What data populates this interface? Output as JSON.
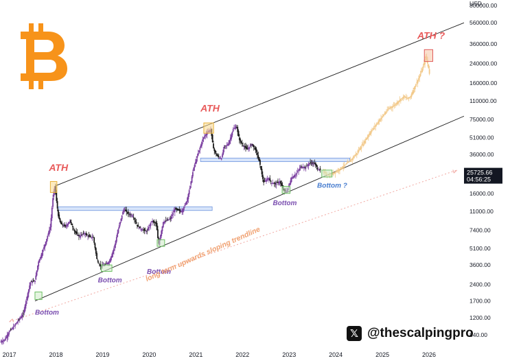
{
  "chart_data": {
    "type": "candlestick",
    "currency_label": "USD",
    "y_scale": "log",
    "ylim": [
      630,
      900000
    ],
    "xlim": [
      2016.8,
      2026.75
    ],
    "y_ticks": [
      800000,
      560000,
      360000,
      240000,
      160000,
      110000,
      75000,
      51000,
      36000,
      25000,
      16000,
      11000,
      7400,
      5100,
      3600,
      2400,
      1700,
      1200,
      840
    ],
    "y_tick_labels": [
      "800000.00",
      "560000.00",
      "360000.00",
      "240000.00",
      "160000.00",
      "110000.00",
      "75000.00",
      "51000.00",
      "36000.00",
      "25000.00",
      "16000.00",
      "11000.00",
      "7400.00",
      "5100.00",
      "3600.00",
      "2400.00",
      "1700.00",
      "1200.00",
      "840.00"
    ],
    "x_ticks": [
      2017,
      2018,
      2019,
      2020,
      2021,
      2022,
      2023,
      2024,
      2025,
      2026
    ],
    "x_tick_labels": [
      "2017",
      "2018",
      "2019",
      "2020",
      "2021",
      "2022",
      "2023",
      "2024",
      "2025",
      "2026"
    ],
    "price_tag": {
      "price": "25725.66",
      "countdown": "04:56:25",
      "value": 25725.66
    },
    "series": [
      {
        "name": "historical",
        "color": "#7b3fa0",
        "points": [
          [
            2016.8,
            720
          ],
          [
            2016.9,
            760
          ],
          [
            2017.0,
            900
          ],
          [
            2017.1,
            1000
          ],
          [
            2017.2,
            1150
          ],
          [
            2017.3,
            1300
          ],
          [
            2017.35,
            1650
          ],
          [
            2017.45,
            2500
          ],
          [
            2017.55,
            2600
          ],
          [
            2017.62,
            3800
          ],
          [
            2017.7,
            4600
          ],
          [
            2017.8,
            6200
          ],
          [
            2017.88,
            8000
          ],
          [
            2017.93,
            14000
          ],
          [
            2017.97,
            19000
          ],
          [
            2018.0,
            15000
          ],
          [
            2018.05,
            10000
          ],
          [
            2018.1,
            8500
          ],
          [
            2018.2,
            8000
          ],
          [
            2018.3,
            9000
          ],
          [
            2018.4,
            7200
          ],
          [
            2018.5,
            6500
          ],
          [
            2018.6,
            7000
          ],
          [
            2018.7,
            6500
          ],
          [
            2018.8,
            6400
          ],
          [
            2018.88,
            4000
          ],
          [
            2018.95,
            3500
          ],
          [
            2019.05,
            3600
          ],
          [
            2019.15,
            3900
          ],
          [
            2019.25,
            5200
          ],
          [
            2019.35,
            8000
          ],
          [
            2019.45,
            11500
          ],
          [
            2019.55,
            10500
          ],
          [
            2019.65,
            10000
          ],
          [
            2019.75,
            8000
          ],
          [
            2019.85,
            7500
          ],
          [
            2019.95,
            7200
          ],
          [
            2020.05,
            9000
          ],
          [
            2020.15,
            8500
          ],
          [
            2020.2,
            5500
          ],
          [
            2020.3,
            8800
          ],
          [
            2020.45,
            9400
          ],
          [
            2020.55,
            11500
          ],
          [
            2020.7,
            11000
          ],
          [
            2020.8,
            13500
          ],
          [
            2020.87,
            18000
          ],
          [
            2020.95,
            27000
          ],
          [
            2021.05,
            37000
          ],
          [
            2021.15,
            50000
          ],
          [
            2021.25,
            58000
          ],
          [
            2021.32,
            60000
          ],
          [
            2021.38,
            40000
          ],
          [
            2021.45,
            35000
          ],
          [
            2021.55,
            33000
          ],
          [
            2021.6,
            42000
          ],
          [
            2021.7,
            45000
          ],
          [
            2021.8,
            61000
          ],
          [
            2021.87,
            65000
          ],
          [
            2021.93,
            49000
          ],
          [
            2022.0,
            44000
          ],
          [
            2022.1,
            40000
          ],
          [
            2022.2,
            45000
          ],
          [
            2022.3,
            38000
          ],
          [
            2022.37,
            30000
          ],
          [
            2022.45,
            20000
          ],
          [
            2022.55,
            22000
          ],
          [
            2022.62,
            20000
          ],
          [
            2022.7,
            19500
          ],
          [
            2022.8,
            20500
          ],
          [
            2022.88,
            17000
          ],
          [
            2022.95,
            16700
          ],
          [
            2023.05,
            22000
          ],
          [
            2023.15,
            24000
          ],
          [
            2023.25,
            28000
          ],
          [
            2023.35,
            27500
          ],
          [
            2023.45,
            30500
          ],
          [
            2023.55,
            29500
          ],
          [
            2023.62,
            26500
          ],
          [
            2023.68,
            25700
          ]
        ]
      },
      {
        "name": "projection",
        "color": "#f2c98a",
        "points": [
          [
            2023.72,
            25000
          ],
          [
            2023.8,
            24000
          ],
          [
            2023.87,
            23000
          ],
          [
            2023.95,
            24500
          ],
          [
            2024.05,
            26000
          ],
          [
            2024.15,
            28000
          ],
          [
            2024.25,
            30000
          ],
          [
            2024.35,
            33000
          ],
          [
            2024.45,
            37000
          ],
          [
            2024.55,
            43000
          ],
          [
            2024.65,
            50000
          ],
          [
            2024.75,
            58000
          ],
          [
            2024.85,
            66000
          ],
          [
            2024.95,
            75000
          ],
          [
            2025.05,
            85000
          ],
          [
            2025.15,
            95000
          ],
          [
            2025.25,
            100000
          ],
          [
            2025.35,
            110000
          ],
          [
            2025.45,
            120000
          ],
          [
            2025.55,
            115000
          ],
          [
            2025.6,
            120000
          ],
          [
            2025.7,
            150000
          ],
          [
            2025.8,
            185000
          ],
          [
            2025.88,
            230000
          ],
          [
            2025.93,
            280000
          ],
          [
            2025.98,
            230000
          ],
          [
            2026.02,
            180000
          ]
        ]
      }
    ],
    "trendlines": [
      {
        "name": "upper-channel",
        "color": "#1a1a1a",
        "from": [
          2018.0,
          18800
        ],
        "to": [
          2026.75,
          560000
        ]
      },
      {
        "name": "lower-channel",
        "color": "#1a1a1a",
        "from": [
          2017.55,
          1700
        ],
        "to": [
          2026.75,
          80000
        ]
      },
      {
        "name": "long-term-dotted",
        "color": "#f1a7a0",
        "dash": true,
        "from": [
          2017.0,
          1100
        ],
        "to": [
          2026.6,
          26000
        ]
      }
    ],
    "zones": [
      {
        "name": "resistance-2018",
        "color": "#b8cff5",
        "x0": 2018.05,
        "x1": 2021.35,
        "y0": 11200,
        "y1": 12100
      },
      {
        "name": "resistance-2021",
        "color": "#b8cff5",
        "x0": 2021.1,
        "x1": 2024.3,
        "y0": 31000,
        "y1": 33400
      }
    ],
    "markers": [
      {
        "name": "ath-2017-box",
        "kind": "ath",
        "x0": 2017.88,
        "x1": 2018.02,
        "y0": 16300,
        "y1": 20500
      },
      {
        "name": "ath-2021-box",
        "kind": "ath",
        "x0": 2021.17,
        "x1": 2021.38,
        "y0": 56000,
        "y1": 69500
      },
      {
        "name": "ath-future-box",
        "kind": "ath-red",
        "x0": 2025.9,
        "x1": 2026.08,
        "y0": 250000,
        "y1": 320000
      },
      {
        "name": "bottom-2017-box",
        "kind": "bottom",
        "x0": 2017.55,
        "x1": 2017.7,
        "y0": 1750,
        "y1": 2050
      },
      {
        "name": "bottom-2018-box",
        "kind": "bottom",
        "x0": 2018.97,
        "x1": 2019.2,
        "y0": 3150,
        "y1": 3600
      },
      {
        "name": "bottom-2020-box",
        "kind": "bottom",
        "x0": 2020.17,
        "x1": 2020.33,
        "y0": 5300,
        "y1": 6100
      },
      {
        "name": "bottom-2022-box",
        "kind": "bottom",
        "x0": 2022.85,
        "x1": 2023.02,
        "y0": 16000,
        "y1": 18500
      },
      {
        "name": "bottom-2023-box",
        "kind": "bottom",
        "x0": 2023.7,
        "x1": 2023.92,
        "y0": 22500,
        "y1": 26000
      }
    ],
    "annotations": [
      {
        "name": "ath-label-2017",
        "text": "ATH",
        "x": 2017.85,
        "y": 25500,
        "color": "#e85a5a",
        "style": "ath"
      },
      {
        "name": "ath-label-2021",
        "text": "ATH",
        "x": 2021.1,
        "y": 88000,
        "color": "#e85a5a",
        "style": "ath"
      },
      {
        "name": "ath-label-future",
        "text": "ATH ?",
        "x": 2025.75,
        "y": 400000,
        "color": "#e85a5a",
        "style": "ath"
      },
      {
        "name": "bottom-label-2017",
        "text": "Bottom",
        "x": 2017.55,
        "y": 1280,
        "color": "#7b4fb0",
        "style": "bottom"
      },
      {
        "name": "bottom-label-2019",
        "text": "Bottom",
        "x": 2018.9,
        "y": 2500,
        "color": "#7b4fb0",
        "style": "bottom"
      },
      {
        "name": "bottom-label-2020",
        "text": "Bottom",
        "x": 2019.95,
        "y": 3000,
        "color": "#7b4fb0",
        "style": "bottom"
      },
      {
        "name": "bottom-label-2022",
        "text": "Bottom",
        "x": 2022.65,
        "y": 12500,
        "color": "#7b4fb0",
        "style": "bottom"
      },
      {
        "name": "bottom-label-2024",
        "text": "Bottom ?",
        "x": 2023.6,
        "y": 18000,
        "color": "#4a7fd0",
        "style": "bottom"
      },
      {
        "name": "trendline-label",
        "text": "long term upwards sloping trendline",
        "x": 2019.95,
        "y": 2550,
        "color": "#f0a070",
        "style": "trend",
        "rotate": -24
      }
    ]
  },
  "watermark": {
    "icon": "x-logo-icon",
    "handle": "@thescalpingpro"
  },
  "logo": {
    "icon": "bitcoin-logo-icon",
    "color": "#f7931a"
  }
}
